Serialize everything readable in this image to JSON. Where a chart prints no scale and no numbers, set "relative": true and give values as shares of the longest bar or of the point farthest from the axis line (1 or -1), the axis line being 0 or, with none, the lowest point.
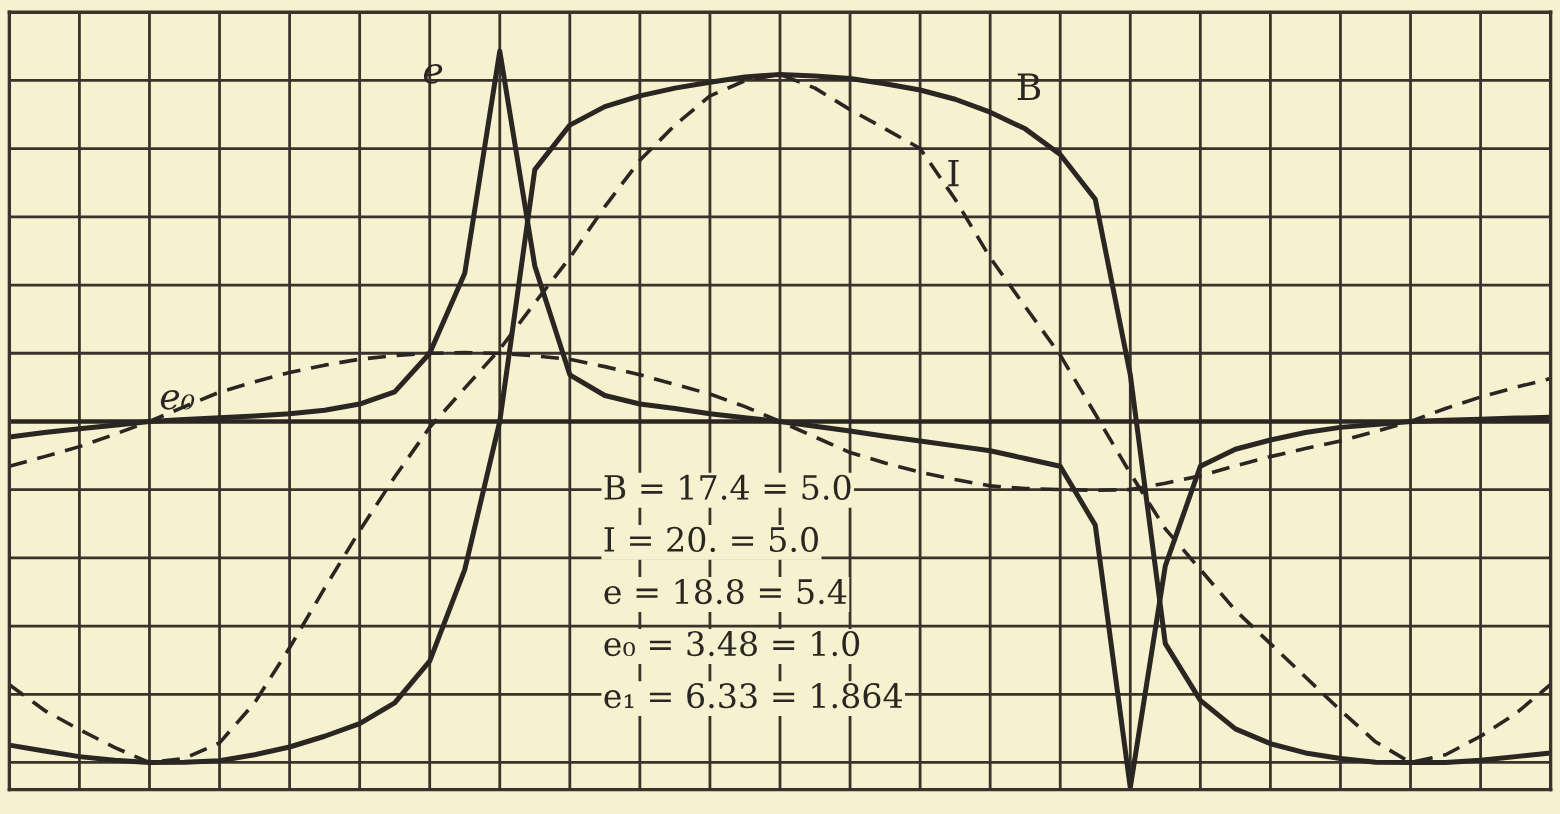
{
  "chart_data": {
    "type": "line",
    "relative": true,
    "grid": true,
    "legend": false,
    "categories": [
      null,
      null,
      null,
      null,
      null,
      null,
      null,
      null,
      null,
      null,
      null,
      null,
      null,
      null,
      null,
      null,
      null,
      null,
      null,
      null,
      null,
      null,
      null,
      null,
      null,
      null,
      null,
      null,
      null,
      null,
      null,
      null,
      null,
      null,
      null,
      null,
      null,
      null,
      null,
      null,
      null,
      null,
      null,
      null,
      null
    ],
    "series": [
      {
        "name": "e",
        "color": "#2a2622",
        "line_style": "solid",
        "values": [
          -0.042,
          -0.03,
          -0.02,
          -0.01,
          0,
          0.005,
          0.01,
          0.015,
          0.021,
          0.03,
          0.047,
          0.08,
          0.184,
          0.4,
          1.0,
          0.42,
          0.126,
          0.07,
          0.047,
          0.035,
          0.021,
          0.01,
          0,
          -0.013,
          -0.026,
          -0.04,
          -0.053,
          -0.066,
          -0.079,
          -0.1,
          -0.121,
          -0.28,
          -0.989,
          -0.39,
          -0.121,
          -0.075,
          -0.05,
          -0.03,
          -0.016,
          -0.008,
          0,
          0.003,
          0.006,
          0.009,
          0.011
        ]
      },
      {
        "name": "B",
        "color": "#2a2622",
        "line_style": "solid",
        "values": [
          -0.874,
          -0.89,
          -0.905,
          -0.915,
          -0.921,
          -0.92,
          -0.916,
          -0.9,
          -0.879,
          -0.85,
          -0.816,
          -0.76,
          -0.647,
          -0.4,
          0,
          0.68,
          0.8,
          0.85,
          0.879,
          0.9,
          0.916,
          0.93,
          0.937,
          0.933,
          0.926,
          0.912,
          0.895,
          0.87,
          0.835,
          0.79,
          0.721,
          0.6,
          0.126,
          -0.6,
          -0.753,
          -0.83,
          -0.87,
          -0.895,
          -0.91,
          -0.92,
          -0.921,
          -0.921,
          -0.915,
          -0.905,
          -0.895
        ]
      },
      {
        "name": "I",
        "color": "#2a2622",
        "line_style": "dashed",
        "values": [
          -0.711,
          -0.78,
          -0.832,
          -0.88,
          -0.921,
          -0.91,
          -0.868,
          -0.76,
          -0.611,
          -0.45,
          -0.295,
          -0.15,
          -0.016,
          0.09,
          0.195,
          0.32,
          0.442,
          0.58,
          0.705,
          0.8,
          0.879,
          0.92,
          0.937,
          0.9,
          0.842,
          0.79,
          0.737,
          0.6,
          0.442,
          0.31,
          0.179,
          0.02,
          -0.14,
          -0.29,
          -0.4,
          -0.51,
          -0.6,
          -0.69,
          -0.78,
          -0.865,
          -0.921,
          -0.9,
          -0.85,
          -0.789,
          -0.71
        ]
      },
      {
        "name": "e₀",
        "color": "#2a2622",
        "line_style": "dashed",
        "values": [
          -0.121,
          -0.095,
          -0.068,
          -0.035,
          0,
          0.04,
          0.079,
          0.107,
          0.132,
          0.152,
          0.168,
          0.178,
          0.184,
          0.186,
          0.184,
          0.177,
          0.168,
          0.148,
          0.126,
          0.1,
          0.074,
          0.04,
          0,
          -0.042,
          -0.084,
          -0.112,
          -0.137,
          -0.157,
          -0.174,
          -0.181,
          -0.184,
          -0.186,
          -0.184,
          -0.167,
          -0.147,
          -0.12,
          -0.095,
          -0.073,
          -0.053,
          -0.027,
          0,
          0.035,
          0.066,
          0.092,
          0.116
        ]
      }
    ],
    "annotations": [
      "B = 17.4 = 5.0",
      "I = 20. = 5.0",
      "e = 18.8 = 5.4",
      "e₀ = 3.48 = 1.0",
      "e₁ = 6.33 = 1.864"
    ]
  }
}
